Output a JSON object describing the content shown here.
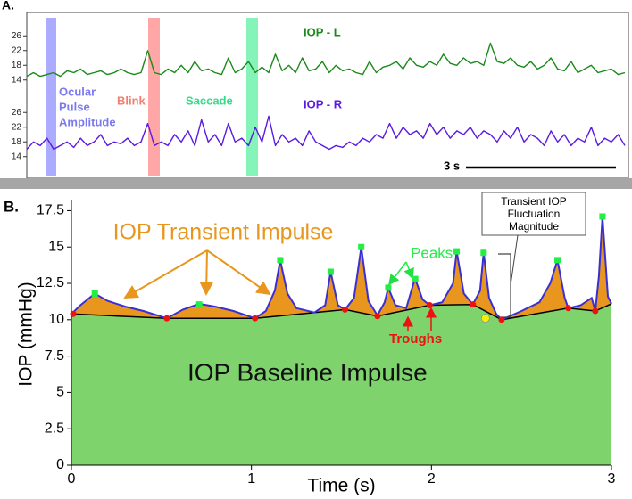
{
  "chart_data": [
    {
      "type": "line",
      "label": "A.",
      "ylim": [
        12,
        28
      ],
      "yticks": [
        14,
        18,
        22,
        26
      ],
      "bands": [
        {
          "label": [
            "Ocular",
            "Pulse",
            "Amplitude"
          ],
          "color": "#8f8fff",
          "text_color": "#7a7aee"
        },
        {
          "label": [
            "Blink"
          ],
          "color": "#ff8a8a",
          "text_color": "#ee7f6f"
        },
        {
          "label": [
            "Saccade"
          ],
          "color": "#5cf0a0",
          "text_color": "#33dd88"
        }
      ],
      "series": [
        {
          "name": "IOP - L",
          "color": "#1a8a1a",
          "values": [
            15,
            16,
            15,
            15.5,
            16,
            15,
            16.5,
            16,
            17,
            15.5,
            16,
            16.5,
            15.5,
            16,
            17,
            16,
            15.5,
            16,
            22,
            16,
            15.5,
            17,
            16,
            18,
            16,
            19,
            16.5,
            17,
            16,
            15.5,
            20,
            16,
            17,
            19,
            16,
            17.5,
            16,
            21,
            16.5,
            18,
            16,
            20,
            16.5,
            17,
            19,
            16,
            18,
            16.5,
            17,
            16,
            15.5,
            19,
            16,
            17.5,
            18,
            19,
            17,
            20,
            18,
            17.5,
            19,
            18,
            21,
            18.5,
            18,
            20,
            18.5,
            19,
            18,
            24,
            19,
            18.5,
            20,
            18,
            17.5,
            19,
            17,
            18,
            20,
            17,
            16.5,
            19,
            16,
            17,
            18,
            16,
            16.5,
            17,
            15.5,
            16
          ]
        }
      ]
    },
    {
      "type": "line",
      "ylim": [
        12,
        28
      ],
      "yticks": [
        14,
        18,
        22,
        26
      ],
      "scale_bar": "3 s",
      "series": [
        {
          "name": "IOP - R",
          "color": "#5a1ae0",
          "values": [
            16,
            18,
            17,
            19,
            16,
            17,
            18,
            16.5,
            19,
            17,
            18,
            20,
            17,
            18,
            17.5,
            19,
            17,
            18,
            23,
            17,
            18,
            17,
            20,
            18,
            21,
            17,
            24,
            18,
            20,
            17,
            23,
            18,
            19,
            17,
            22,
            18,
            25,
            17,
            20,
            18,
            19,
            17,
            21,
            18,
            17,
            16,
            17,
            16.5,
            18,
            17,
            19,
            18,
            20,
            19,
            23,
            19,
            22,
            20,
            21,
            19,
            23,
            20,
            22,
            19,
            21,
            20,
            22,
            19,
            21,
            20,
            18,
            21,
            19,
            22,
            18,
            20,
            19,
            17,
            21,
            18,
            20,
            17,
            19,
            18,
            22,
            17,
            19,
            18,
            20,
            17
          ]
        }
      ]
    },
    {
      "type": "area",
      "label": "B.",
      "xlabel": "Time (s)",
      "ylabel": "IOP (mmHg)",
      "xlim": [
        0,
        3
      ],
      "xticks": [
        0,
        1,
        2,
        3
      ],
      "ylim": [
        0,
        18.2
      ],
      "yticks": [
        0,
        2.5,
        5,
        7.5,
        10,
        12.5,
        15,
        17.5
      ],
      "box_text": [
        "Transient IOP",
        "Fluctuation",
        "Magnitude"
      ],
      "highlight": {
        "x": 2.3,
        "y": 10.1,
        "color": "#f5f000"
      },
      "series": [
        {
          "name": "IOP Transient Impulse",
          "color": "#3a2fd6",
          "fill": "#e8961e",
          "x": [
            0,
            0.05,
            0.13,
            0.2,
            0.3,
            0.4,
            0.53,
            0.62,
            0.71,
            0.8,
            0.9,
            1.02,
            1.08,
            1.13,
            1.16,
            1.2,
            1.25,
            1.35,
            1.41,
            1.44,
            1.48,
            1.52,
            1.57,
            1.61,
            1.65,
            1.7,
            1.74,
            1.76,
            1.8,
            1.86,
            1.9,
            1.91,
            1.95,
            1.99,
            2.06,
            2.12,
            2.14,
            2.18,
            2.23,
            2.27,
            2.29,
            2.32,
            2.36,
            2.39,
            2.5,
            2.6,
            2.66,
            2.7,
            2.74,
            2.76,
            2.83,
            2.89,
            2.91,
            2.93,
            2.95,
            2.98,
            3.0
          ],
          "values": [
            10.4,
            11.0,
            11.8,
            11.3,
            10.9,
            10.6,
            10.1,
            10.7,
            11.1,
            10.9,
            10.6,
            10.1,
            10.6,
            12.0,
            14.1,
            11.8,
            10.8,
            10.5,
            11.0,
            13.3,
            11.0,
            10.7,
            11.5,
            15.0,
            11.3,
            10.3,
            11.2,
            12.2,
            11.0,
            10.8,
            12.5,
            12.8,
            11.4,
            11.0,
            11.2,
            12.5,
            14.7,
            11.8,
            11.05,
            12.0,
            14.6,
            11.5,
            10.4,
            10.0,
            10.6,
            11.2,
            12.5,
            14.1,
            11.5,
            10.8,
            11.0,
            11.5,
            10.6,
            13.0,
            17.1,
            11.6,
            11.1
          ]
        },
        {
          "name": "IOP Baseline Impulse",
          "color": "#000000",
          "fill": "#7ed36c",
          "x": [
            0,
            0.53,
            1.02,
            1.52,
            1.7,
            1.99,
            2.23,
            2.39,
            2.76,
            2.91,
            3.0
          ],
          "values": [
            10.4,
            10.1,
            10.1,
            10.7,
            10.25,
            11.0,
            11.05,
            10.0,
            10.8,
            10.6,
            11.1
          ]
        },
        {
          "name": "Peaks",
          "color": "#22ee44",
          "x": [
            0.13,
            0.71,
            1.16,
            1.44,
            1.61,
            1.76,
            1.91,
            2.14,
            2.29,
            2.7,
            2.95
          ],
          "values": [
            11.8,
            11.05,
            14.1,
            13.3,
            15.0,
            12.2,
            12.8,
            14.7,
            14.6,
            14.1,
            17.1
          ]
        },
        {
          "name": "Troughs",
          "color": "#ee1111",
          "x": [
            0.01,
            0.53,
            1.02,
            1.52,
            1.7,
            1.99,
            2.23,
            2.39,
            2.76,
            2.91
          ],
          "values": [
            10.4,
            10.1,
            10.1,
            10.7,
            10.25,
            11.0,
            11.05,
            10.0,
            10.8,
            10.6
          ]
        }
      ]
    }
  ]
}
